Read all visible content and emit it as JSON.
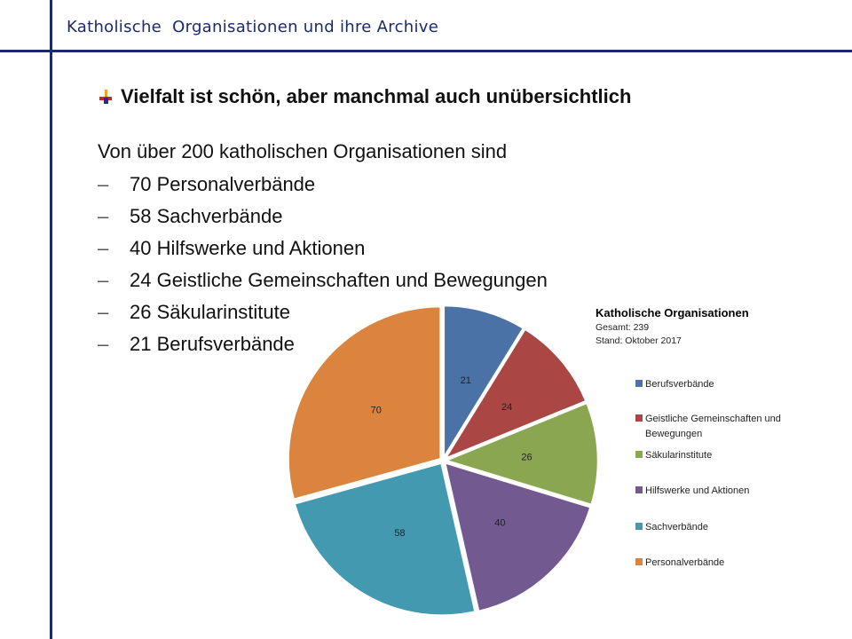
{
  "header": {
    "title": "Katholische  Organisationen und ihre Archive"
  },
  "slide": {
    "heading": "Vielfalt ist schön, aber manchmal auch unübersichtlich",
    "intro": "Von über 200 katholischen Organisationen sind",
    "items": [
      "70 Personalverbände",
      "58 Sachverbände",
      "40 Hilfswerke und Aktionen",
      "24 Geistliche Gemeinschaften und Bewegungen",
      "26 Säkularinstitute",
      "21 Berufsverbände"
    ],
    "bullet_icon": "cross-icon",
    "dash_symbol": "–"
  },
  "chart_data": {
    "type": "pie",
    "title": "Katholische Organisationen",
    "subtitle": [
      "Gesamt: 239",
      "Stand: Oktober 2017"
    ],
    "legend_position": "right",
    "categories": [
      "Berufsverbände",
      "Geistliche Gemeinschaften und Bewegungen",
      "Säkularinstitute",
      "Hilfswerke und Aktionen",
      "Sachverbände",
      "Personalverbände"
    ],
    "legend_lines": [
      [
        "Berufsverbände"
      ],
      [
        "Geistliche Gemeinschaften und",
        "Bewegungen"
      ],
      [
        "Säkularinstitute"
      ],
      [
        "Hilfswerke und Aktionen"
      ],
      [
        "Sachverbände"
      ],
      [
        "Personalverbände"
      ]
    ],
    "values": [
      21,
      24,
      26,
      40,
      58,
      70
    ],
    "colors": [
      "#4a72a6",
      "#aa4644",
      "#8aa650",
      "#72598f",
      "#4299b0",
      "#db843d"
    ],
    "start_angle": "12 o'clock",
    "direction": "clockwise"
  }
}
